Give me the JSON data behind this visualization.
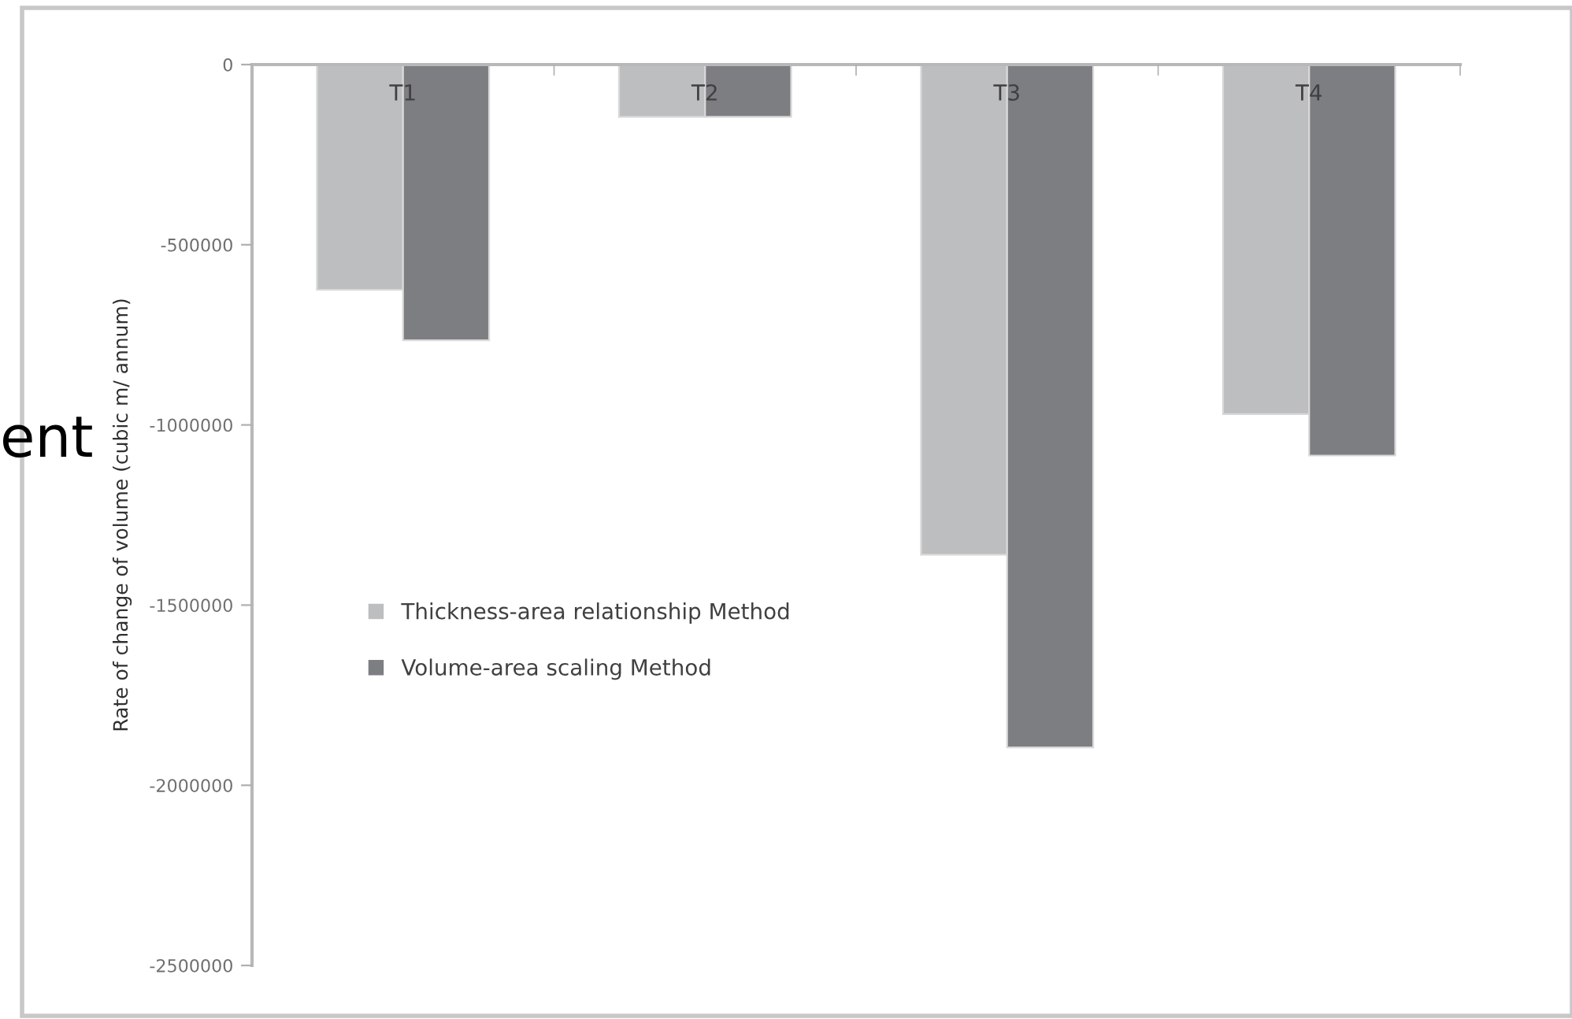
{
  "chart_data": {
    "type": "bar",
    "ylabel": "Rate of change of volume (cubic m/ annum)",
    "categories": [
      "T1",
      "T2",
      "T3",
      "T4"
    ],
    "series": [
      {
        "name": "Thickness-area relationship Method",
        "color": "#bdbec0",
        "values": [
          -625000,
          -145000,
          -1360000,
          -970000
        ]
      },
      {
        "name": "Volume-area scaling Method",
        "color": "#7d7e82",
        "values": [
          -765000,
          -145000,
          -1895000,
          -1085000
        ]
      }
    ],
    "ylim": [
      -2500000,
      0
    ],
    "yticks": [
      0,
      -500000,
      -1000000,
      -1500000,
      -2000000,
      -2500000
    ],
    "grid": false,
    "legend": "left",
    "annotations": [
      "ent"
    ]
  }
}
